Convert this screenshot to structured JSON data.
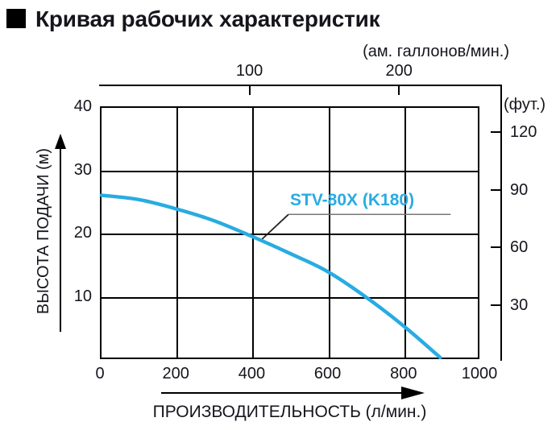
{
  "title": {
    "text": "Кривая рабочих характеристик"
  },
  "colors": {
    "curve": "#29ABE2",
    "axis": "#000000",
    "text": "#15151c",
    "leader_diagonal": "#222222",
    "leader_horizontal": "#777777"
  },
  "chart_data": {
    "type": "line",
    "title": "Кривая рабочих характеристик",
    "xlabel": "ПРОИЗВОДИТЕЛЬНОСТЬ (л/мин.)",
    "x2label": "(ам. галлонов/мин.)",
    "ylabel": "ВЫСОТА ПОДАЧИ (м)",
    "y2label": "(фут.)",
    "xlim": [
      0,
      1000
    ],
    "ylim": [
      0,
      40
    ],
    "xticks": [
      0,
      200,
      400,
      600,
      800,
      1000
    ],
    "yticks": [
      10,
      20,
      30,
      40
    ],
    "x2ticks": [
      100,
      200
    ],
    "y2ticks": [
      30,
      60,
      90,
      120
    ],
    "grid": true,
    "legend_position": "inline-callout",
    "series": [
      {
        "name": "STV-80X (K180)",
        "color": "#29ABE2",
        "x": [
          0,
          100,
          200,
          300,
          400,
          500,
          600,
          700,
          800,
          900
        ],
        "y": [
          26,
          25.3,
          23.8,
          21.9,
          19.4,
          16.7,
          13.8,
          9.8,
          5.2,
          0
        ]
      }
    ]
  }
}
